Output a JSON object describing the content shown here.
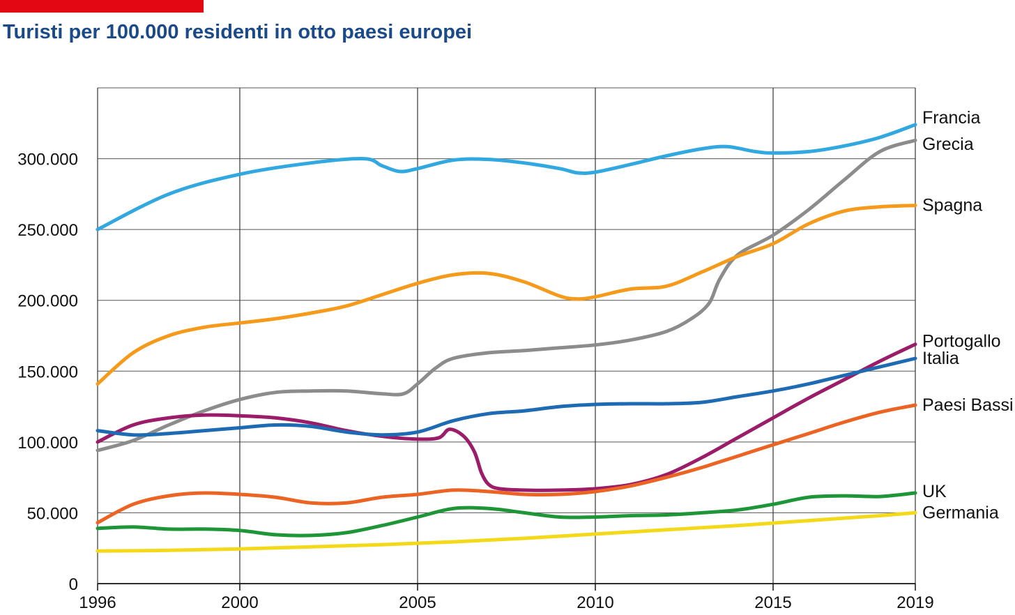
{
  "accent_color": "#e30613",
  "title_color": "#1a4a8a",
  "chart_data": {
    "type": "line",
    "title": "Turisti per 100.000 residenti in otto paesi europei",
    "xlabel": "",
    "ylabel": "",
    "xlim": [
      1996,
      2019
    ],
    "ylim": [
      0,
      350000
    ],
    "grid": true,
    "legend": "direct labels at right end of lines",
    "x_ticks": [
      1996,
      2000,
      2005,
      2010,
      2015,
      2019
    ],
    "x_tick_labels": [
      "1996",
      "2000",
      "2005",
      "2010",
      "2015",
      "2019"
    ],
    "y_ticks": [
      0,
      50000,
      100000,
      150000,
      200000,
      250000,
      300000
    ],
    "y_tick_labels": [
      "0",
      "50.000",
      "100.000",
      "150.000",
      "200.000",
      "250.000",
      "300.000"
    ],
    "series": [
      {
        "name": "Francia",
        "color": "#32a8e0",
        "points": [
          [
            1996,
            250000
          ],
          [
            1998,
            275000
          ],
          [
            2000,
            289000
          ],
          [
            2002,
            297000
          ],
          [
            2003.5,
            300000
          ],
          [
            2004,
            295000
          ],
          [
            2004.5,
            291000
          ],
          [
            2005,
            293000
          ],
          [
            2006,
            299000
          ],
          [
            2007,
            299500
          ],
          [
            2008,
            297000
          ],
          [
            2009,
            293000
          ],
          [
            2009.5,
            290000
          ],
          [
            2010,
            290500
          ],
          [
            2011,
            296000
          ],
          [
            2012,
            302000
          ],
          [
            2013,
            307000
          ],
          [
            2013.7,
            308500
          ],
          [
            2014.5,
            305000
          ],
          [
            2015,
            304000
          ],
          [
            2016,
            305000
          ],
          [
            2017,
            309000
          ],
          [
            2018,
            315000
          ],
          [
            2019,
            324000
          ]
        ]
      },
      {
        "name": "Grecia",
        "color": "#8c8c8c",
        "points": [
          [
            1996,
            94000
          ],
          [
            1997,
            101000
          ],
          [
            1998,
            112000
          ],
          [
            1999,
            122000
          ],
          [
            2000,
            130000
          ],
          [
            2001,
            135000
          ],
          [
            2002,
            136000
          ],
          [
            2003,
            136000
          ],
          [
            2004,
            134000
          ],
          [
            2004.6,
            134000
          ],
          [
            2005,
            141000
          ],
          [
            2005.5,
            152000
          ],
          [
            2006,
            159000
          ],
          [
            2007,
            163000
          ],
          [
            2008,
            164500
          ],
          [
            2009,
            166500
          ],
          [
            2010,
            168500
          ],
          [
            2011,
            172000
          ],
          [
            2012,
            178000
          ],
          [
            2012.7,
            187000
          ],
          [
            2013.2,
            198000
          ],
          [
            2013.5,
            215000
          ],
          [
            2014,
            232000
          ],
          [
            2015,
            246000
          ],
          [
            2016,
            264000
          ],
          [
            2017,
            285000
          ],
          [
            2018,
            305000
          ],
          [
            2019,
            313000
          ]
        ]
      },
      {
        "name": "Spagna",
        "color": "#f59a1b",
        "points": [
          [
            1996,
            141000
          ],
          [
            1997,
            163000
          ],
          [
            1998,
            175000
          ],
          [
            1999,
            181000
          ],
          [
            2000,
            184000
          ],
          [
            2001,
            187000
          ],
          [
            2002,
            191000
          ],
          [
            2003,
            196000
          ],
          [
            2004,
            204000
          ],
          [
            2005,
            212000
          ],
          [
            2006,
            218000
          ],
          [
            2007,
            219000
          ],
          [
            2008,
            213000
          ],
          [
            2009,
            203000
          ],
          [
            2009.5,
            201000
          ],
          [
            2010,
            202500
          ],
          [
            2011,
            208000
          ],
          [
            2012,
            210000
          ],
          [
            2013,
            220000
          ],
          [
            2014,
            231000
          ],
          [
            2015,
            240000
          ],
          [
            2016,
            254000
          ],
          [
            2017,
            263000
          ],
          [
            2018,
            266000
          ],
          [
            2019,
            267000
          ]
        ]
      },
      {
        "name": "Portogallo",
        "color": "#9b1d6a",
        "points": [
          [
            1996,
            100000
          ],
          [
            1997,
            112000
          ],
          [
            1998,
            117000
          ],
          [
            1999,
            119000
          ],
          [
            2000,
            118500
          ],
          [
            2001,
            117000
          ],
          [
            2002,
            113500
          ],
          [
            2003,
            108000
          ],
          [
            2004,
            104000
          ],
          [
            2005,
            102000
          ],
          [
            2005.6,
            103000
          ],
          [
            2005.9,
            109000
          ],
          [
            2006.3,
            104000
          ],
          [
            2006.6,
            93000
          ],
          [
            2006.8,
            78000
          ],
          [
            2007,
            70000
          ],
          [
            2007.3,
            67000
          ],
          [
            2008,
            66000
          ],
          [
            2009,
            66000
          ],
          [
            2010,
            67000
          ],
          [
            2011,
            70000
          ],
          [
            2012,
            77000
          ],
          [
            2013,
            89000
          ],
          [
            2014,
            103000
          ],
          [
            2015,
            117000
          ],
          [
            2016,
            131000
          ],
          [
            2017,
            144000
          ],
          [
            2018,
            157000
          ],
          [
            2019,
            169000
          ]
        ]
      },
      {
        "name": "Italia",
        "color": "#1e6bb4",
        "points": [
          [
            1996,
            108000
          ],
          [
            1997,
            105000
          ],
          [
            1998,
            106000
          ],
          [
            1999,
            108000
          ],
          [
            2000,
            110000
          ],
          [
            2001,
            112000
          ],
          [
            2002,
            111000
          ],
          [
            2003,
            107000
          ],
          [
            2004,
            105000
          ],
          [
            2005,
            107000
          ],
          [
            2006,
            115000
          ],
          [
            2007,
            120000
          ],
          [
            2008,
            122000
          ],
          [
            2009,
            125000
          ],
          [
            2010,
            126500
          ],
          [
            2011,
            127000
          ],
          [
            2012,
            127000
          ],
          [
            2013,
            128000
          ],
          [
            2014,
            132000
          ],
          [
            2015,
            136000
          ],
          [
            2016,
            141000
          ],
          [
            2017,
            147000
          ],
          [
            2018,
            153000
          ],
          [
            2019,
            159000
          ]
        ]
      },
      {
        "name": "Paesi Bassi",
        "color": "#ec6424",
        "points": [
          [
            1996,
            43000
          ],
          [
            1997,
            56000
          ],
          [
            1998,
            62000
          ],
          [
            1999,
            64000
          ],
          [
            2000,
            63000
          ],
          [
            2001,
            61000
          ],
          [
            2002,
            57000
          ],
          [
            2003,
            57000
          ],
          [
            2004,
            61000
          ],
          [
            2005,
            63000
          ],
          [
            2006,
            66000
          ],
          [
            2007,
            65000
          ],
          [
            2008,
            63000
          ],
          [
            2009,
            63000
          ],
          [
            2010,
            65000
          ],
          [
            2011,
            69000
          ],
          [
            2012,
            75000
          ],
          [
            2013,
            82000
          ],
          [
            2014,
            90000
          ],
          [
            2015,
            98000
          ],
          [
            2016,
            106000
          ],
          [
            2017,
            114000
          ],
          [
            2018,
            121000
          ],
          [
            2019,
            126000
          ]
        ]
      },
      {
        "name": "UK",
        "color": "#1e9638",
        "points": [
          [
            1996,
            39000
          ],
          [
            1997,
            40000
          ],
          [
            1998,
            38500
          ],
          [
            1999,
            38500
          ],
          [
            2000,
            37500
          ],
          [
            2001,
            34500
          ],
          [
            2002,
            34000
          ],
          [
            2003,
            36000
          ],
          [
            2004,
            41000
          ],
          [
            2005,
            47000
          ],
          [
            2006,
            53000
          ],
          [
            2007,
            53000
          ],
          [
            2008,
            50000
          ],
          [
            2009,
            47000
          ],
          [
            2010,
            47000
          ],
          [
            2011,
            48000
          ],
          [
            2012,
            48500
          ],
          [
            2013,
            50000
          ],
          [
            2014,
            52000
          ],
          [
            2015,
            56000
          ],
          [
            2016,
            61000
          ],
          [
            2017,
            62000
          ],
          [
            2018,
            61500
          ],
          [
            2019,
            64000
          ]
        ]
      },
      {
        "name": "Germania",
        "color": "#f4d91a",
        "points": [
          [
            1996,
            23000
          ],
          [
            1998,
            23500
          ],
          [
            2000,
            24500
          ],
          [
            2002,
            26000
          ],
          [
            2004,
            27500
          ],
          [
            2006,
            29500
          ],
          [
            2008,
            32000
          ],
          [
            2010,
            35000
          ],
          [
            2012,
            38000
          ],
          [
            2014,
            41000
          ],
          [
            2016,
            44500
          ],
          [
            2018,
            48000
          ],
          [
            2019,
            50000
          ]
        ]
      }
    ]
  }
}
